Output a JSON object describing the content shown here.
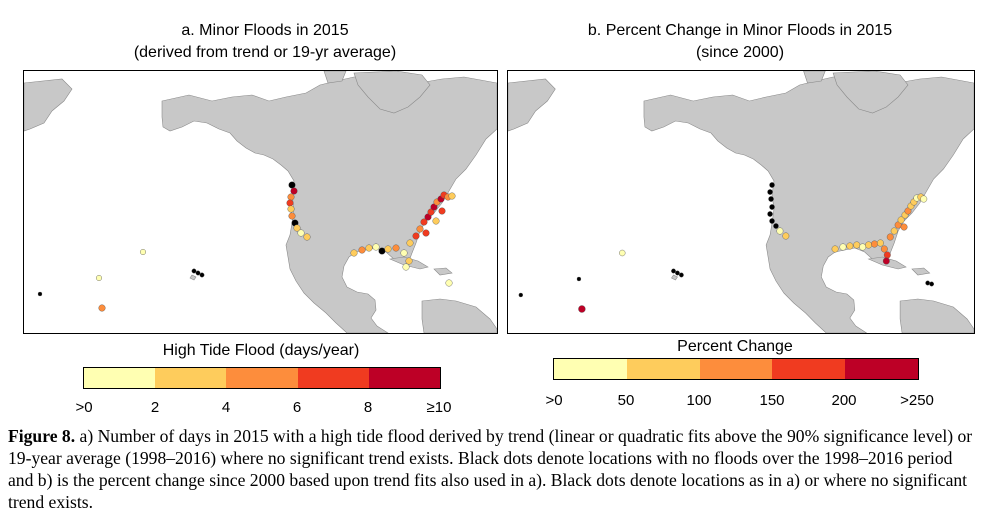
{
  "panel_a": {
    "title_line1": "a. Minor Floods in 2015",
    "title_line2": "(derived from trend or 19-yr average)"
  },
  "panel_b": {
    "title_line1": "b. Percent Change in Minor Floods in 2015",
    "title_line2": "(since 2000)"
  },
  "colorbar_a": {
    "title": "High Tide Flood (days/year)",
    "ticks": [
      ">0",
      "2",
      "4",
      "6",
      "8",
      "≥10"
    ],
    "colors": [
      "#ffffb2",
      "#fecc5c",
      "#fd8d3c",
      "#f03b20",
      "#bd0026"
    ]
  },
  "colorbar_b": {
    "title": "Percent Change",
    "ticks": [
      ">0",
      "50",
      "100",
      "150",
      "200",
      ">250"
    ],
    "colors": [
      "#ffffb2",
      "#fecc5c",
      "#fd8d3c",
      "#f03b20",
      "#bd0026"
    ]
  },
  "map_colors": {
    "land": "#c8c8c8",
    "ocean": "#ffffff",
    "outline": "#8a8a8a",
    "no_flood": "#000000"
  },
  "caption": {
    "label": "Figure 8.",
    "text": " a) Number of days in 2015 with a high tide flood derived by trend (linear or quadratic fits above the 90% significance level) or 19-year average (1998–2016) where no significant trend exists. Black dots denote locations with no floods over the 1998–2016 period and b) is the percent change since 2000 based upon trend fits also used in a). Black dots denote locations as in a) or where no significant trend exists."
  }
}
